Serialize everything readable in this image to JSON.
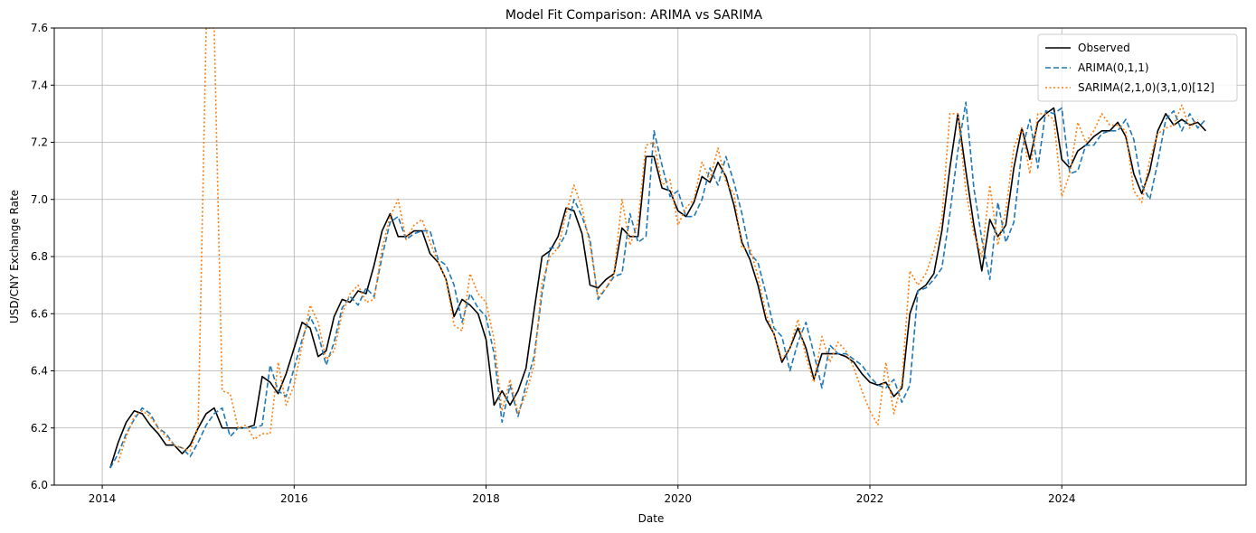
{
  "chart_data": {
    "type": "line",
    "title": "Model Fit Comparison: ARIMA vs SARIMA",
    "xlabel": "Date",
    "ylabel": "USD/CNY Exchange Rate",
    "xlim": [
      2013.5,
      2025.92
    ],
    "ylim": [
      6.0,
      7.6
    ],
    "x_ticks": [
      2014,
      2016,
      2018,
      2020,
      2022,
      2024
    ],
    "x_tick_labels": [
      "2014",
      "2016",
      "2018",
      "2020",
      "2022",
      "2024"
    ],
    "y_ticks": [
      6.0,
      6.2,
      6.4,
      6.6,
      6.8,
      7.0,
      7.2,
      7.4,
      7.6
    ],
    "y_tick_labels": [
      "6.0",
      "6.2",
      "6.4",
      "6.6",
      "6.8",
      "7.0",
      "7.2",
      "7.4",
      "7.6"
    ],
    "grid": true,
    "legend_position": "top-right",
    "start": "2014-02",
    "frequency": "monthly",
    "series": [
      {
        "name": "Observed",
        "color": "#000000",
        "dash": "solid",
        "values": [
          6.06,
          6.15,
          6.22,
          6.26,
          6.25,
          6.21,
          6.18,
          6.14,
          6.14,
          6.11,
          6.14,
          6.2,
          6.25,
          6.27,
          6.2,
          6.2,
          6.2,
          6.2,
          6.21,
          6.38,
          6.36,
          6.32,
          6.39,
          6.48,
          6.57,
          6.55,
          6.45,
          6.47,
          6.59,
          6.65,
          6.64,
          6.68,
          6.67,
          6.77,
          6.89,
          6.95,
          6.87,
          6.87,
          6.89,
          6.89,
          6.81,
          6.78,
          6.72,
          6.59,
          6.65,
          6.63,
          6.6,
          6.51,
          6.28,
          6.33,
          6.28,
          6.33,
          6.41,
          6.61,
          6.8,
          6.82,
          6.87,
          6.97,
          6.96,
          6.88,
          6.7,
          6.69,
          6.72,
          6.74,
          6.9,
          6.87,
          6.87,
          7.15,
          7.15,
          7.04,
          7.03,
          6.96,
          6.94,
          6.99,
          7.08,
          7.06,
          7.13,
          7.08,
          6.98,
          6.85,
          6.79,
          6.7,
          6.58,
          6.53,
          6.43,
          6.48,
          6.55,
          6.48,
          6.37,
          6.46,
          6.46,
          6.46,
          6.45,
          6.43,
          6.39,
          6.36,
          6.35,
          6.36,
          6.31,
          6.34,
          6.6,
          6.68,
          6.7,
          6.74,
          6.89,
          7.11,
          7.3,
          7.1,
          6.91,
          6.75,
          6.93,
          6.87,
          6.91,
          7.11,
          7.25,
          7.14,
          7.27,
          7.3,
          7.32,
          7.14,
          7.11,
          7.17,
          7.19,
          7.22,
          7.24,
          7.24,
          7.27,
          7.22,
          7.09,
          7.02,
          7.1,
          7.24,
          7.3,
          7.26,
          7.28,
          7.26,
          7.27,
          7.24
        ]
      },
      {
        "name": "ARIMA(0,1,1)",
        "color": "#1f77b4",
        "dash": "dashed",
        "values": [
          6.06,
          6.11,
          6.18,
          6.23,
          6.27,
          6.25,
          6.2,
          6.18,
          6.14,
          6.13,
          6.1,
          6.15,
          6.21,
          6.25,
          6.27,
          6.17,
          6.2,
          6.2,
          6.2,
          6.21,
          6.42,
          6.33,
          6.31,
          6.41,
          6.51,
          6.59,
          6.53,
          6.42,
          6.5,
          6.62,
          6.66,
          6.63,
          6.69,
          6.66,
          6.8,
          6.92,
          6.94,
          6.86,
          6.88,
          6.89,
          6.89,
          6.79,
          6.77,
          6.7,
          6.57,
          6.67,
          6.62,
          6.59,
          6.46,
          6.22,
          6.35,
          6.24,
          6.35,
          6.45,
          6.67,
          6.83,
          6.83,
          6.88,
          7.0,
          6.94,
          6.86,
          6.65,
          6.69,
          6.73,
          6.74,
          6.95,
          6.85,
          6.87,
          7.24,
          7.12,
          7.01,
          7.03,
          6.94,
          6.94,
          7.0,
          7.11,
          7.05,
          7.15,
          7.06,
          6.95,
          6.81,
          6.78,
          6.67,
          6.55,
          6.52,
          6.4,
          6.5,
          6.57,
          6.46,
          6.34,
          6.49,
          6.46,
          6.46,
          6.44,
          6.42,
          6.38,
          6.35,
          6.34,
          6.37,
          6.29,
          6.35,
          6.68,
          6.69,
          6.72,
          6.76,
          6.95,
          7.17,
          7.34,
          7.04,
          6.86,
          6.72,
          6.99,
          6.85,
          6.92,
          7.17,
          7.28,
          7.11,
          7.31,
          7.3,
          7.32,
          7.09,
          7.1,
          7.19,
          7.19,
          7.23,
          7.24,
          7.24,
          7.28,
          7.21,
          7.05,
          7.0,
          7.13,
          7.28,
          7.31,
          7.24,
          7.3,
          7.25,
          7.28
        ]
      },
      {
        "name": "SARIMA(2,1,0)(3,1,0)[12]",
        "color": "#ff7f0e",
        "dash": "dotted",
        "values": [
          null,
          6.08,
          6.17,
          6.24,
          6.26,
          6.24,
          6.2,
          6.17,
          6.14,
          6.13,
          6.12,
          6.21,
          7.6,
          7.6,
          6.33,
          6.32,
          6.2,
          6.21,
          6.16,
          6.18,
          6.18,
          6.43,
          6.28,
          6.35,
          6.49,
          6.63,
          6.57,
          6.44,
          6.47,
          6.6,
          6.67,
          6.7,
          6.64,
          6.65,
          6.83,
          6.94,
          7.0,
          6.86,
          6.91,
          6.93,
          6.85,
          6.78,
          6.72,
          6.56,
          6.54,
          6.74,
          6.67,
          6.64,
          6.51,
          6.26,
          6.37,
          6.25,
          6.32,
          6.42,
          6.71,
          6.8,
          6.83,
          6.95,
          7.05,
          6.97,
          6.84,
          6.66,
          6.69,
          6.74,
          7.0,
          6.84,
          6.92,
          7.19,
          7.2,
          7.05,
          7.07,
          6.91,
          6.97,
          7.0,
          7.13,
          7.07,
          7.18,
          7.06,
          7.02,
          6.83,
          6.83,
          6.73,
          6.6,
          6.53,
          6.44,
          6.48,
          6.58,
          6.45,
          6.36,
          6.52,
          6.43,
          6.5,
          6.47,
          6.41,
          6.33,
          6.26,
          6.21,
          6.43,
          6.25,
          6.36,
          6.75,
          6.7,
          6.74,
          6.82,
          6.93,
          7.3,
          7.3,
          7.03,
          6.88,
          6.8,
          7.05,
          6.84,
          6.96,
          7.18,
          7.25,
          7.09,
          7.3,
          7.3,
          7.28,
          7.01,
          7.09,
          7.27,
          7.2,
          7.24,
          7.3,
          7.26,
          7.26,
          7.24,
          7.03,
          6.99,
          7.14,
          7.23,
          7.25,
          7.26,
          7.33,
          7.25,
          7.28
        ]
      }
    ]
  }
}
